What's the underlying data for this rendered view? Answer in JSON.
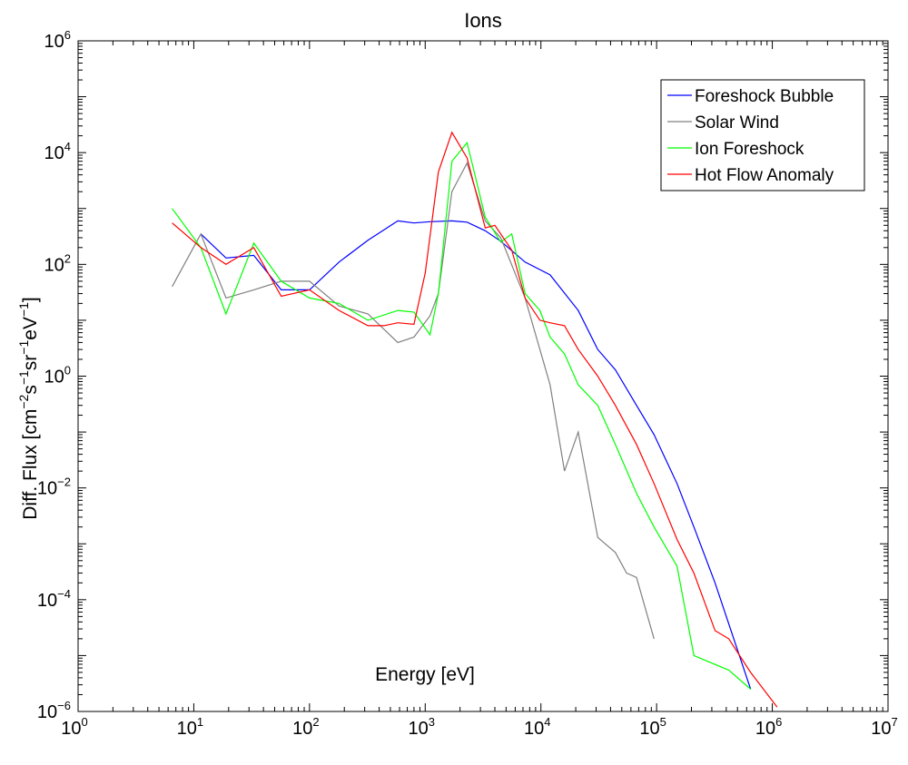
{
  "chart_data": {
    "type": "line",
    "title": "Ions",
    "xlabel": "Energy [eV]",
    "ylabel": {
      "parts": [
        {
          "text": "Diff. Flux [cm",
          "sup": false
        },
        {
          "text": "−2",
          "sup": true
        },
        {
          "text": "s",
          "sup": false
        },
        {
          "text": "−1",
          "sup": true
        },
        {
          "text": "sr",
          "sup": false
        },
        {
          "text": "−1",
          "sup": true
        },
        {
          "text": "eV",
          "sup": false
        },
        {
          "text": "−1",
          "sup": true
        },
        {
          "text": "]",
          "sup": false
        }
      ]
    },
    "xscale": "log",
    "yscale": "log",
    "xlim": [
      1,
      10000000
    ],
    "ylim": [
      1e-06,
      1000000
    ],
    "x_ticks": [
      {
        "base": "10",
        "exp": "0",
        "value": 1
      },
      {
        "base": "10",
        "exp": "1",
        "value": 10
      },
      {
        "base": "10",
        "exp": "2",
        "value": 100
      },
      {
        "base": "10",
        "exp": "3",
        "value": 1000
      },
      {
        "base": "10",
        "exp": "4",
        "value": 10000
      },
      {
        "base": "10",
        "exp": "5",
        "value": 100000
      },
      {
        "base": "10",
        "exp": "6",
        "value": 1000000
      },
      {
        "base": "10",
        "exp": "7",
        "value": 10000000
      }
    ],
    "y_ticks": [
      {
        "base": "10",
        "exp": "−6",
        "value": 1e-06
      },
      {
        "base": "10",
        "exp": "−4",
        "value": 0.0001
      },
      {
        "base": "10",
        "exp": "−2",
        "value": 0.01
      },
      {
        "base": "10",
        "exp": "0",
        "value": 1
      },
      {
        "base": "10",
        "exp": "2",
        "value": 100
      },
      {
        "base": "10",
        "exp": "4",
        "value": 10000
      },
      {
        "base": "10",
        "exp": "6",
        "value": 1000000
      }
    ],
    "grid": false,
    "legend_position": "top-right",
    "series": [
      {
        "name": "Foreshock Bubble",
        "color": "#0000ff",
        "points": [
          [
            11.5,
            350
          ],
          [
            19,
            130
          ],
          [
            33,
            145
          ],
          [
            57,
            35
          ],
          [
            100,
            35
          ],
          [
            180,
            110
          ],
          [
            320,
            270
          ],
          [
            580,
            600
          ],
          [
            800,
            550
          ],
          [
            1100,
            580
          ],
          [
            1700,
            600
          ],
          [
            2300,
            570
          ],
          [
            3300,
            400
          ],
          [
            4500,
            260
          ],
          [
            7300,
            110
          ],
          [
            12000,
            65
          ],
          [
            21000,
            15
          ],
          [
            31000,
            3
          ],
          [
            44000,
            1.3
          ],
          [
            67000,
            0.3
          ],
          [
            95000,
            0.09
          ],
          [
            150000,
            0.012
          ],
          [
            210000,
            0.002
          ],
          [
            320000,
            0.0002
          ],
          [
            650000,
            2.5e-06
          ]
        ]
      },
      {
        "name": "Solar Wind",
        "color": "#808080",
        "points": [
          [
            6.5,
            40
          ],
          [
            11.5,
            350
          ],
          [
            19,
            25
          ],
          [
            33,
            35
          ],
          [
            57,
            50
          ],
          [
            100,
            50
          ],
          [
            180,
            18
          ],
          [
            320,
            13
          ],
          [
            580,
            4
          ],
          [
            800,
            5
          ],
          [
            1100,
            12
          ],
          [
            1300,
            30
          ],
          [
            1700,
            2000
          ],
          [
            2300,
            6500
          ],
          [
            3300,
            600
          ],
          [
            4500,
            300
          ],
          [
            7300,
            25
          ],
          [
            9800,
            3
          ],
          [
            12000,
            0.7
          ],
          [
            16000,
            0.02
          ],
          [
            21000,
            0.1
          ],
          [
            31000,
            0.0013
          ],
          [
            44000,
            0.0007
          ],
          [
            55000,
            0.0003
          ],
          [
            67000,
            0.00025
          ],
          [
            95000,
            2e-05
          ]
        ]
      },
      {
        "name": "Ion Foreshock",
        "color": "#00ff00",
        "points": [
          [
            6.5,
            1000
          ],
          [
            11.5,
            200
          ],
          [
            19,
            13
          ],
          [
            33,
            240
          ],
          [
            57,
            50
          ],
          [
            100,
            25
          ],
          [
            180,
            20
          ],
          [
            320,
            10
          ],
          [
            580,
            15
          ],
          [
            800,
            14
          ],
          [
            1100,
            5.5
          ],
          [
            1300,
            30
          ],
          [
            1700,
            7000
          ],
          [
            2300,
            15000
          ],
          [
            3300,
            700
          ],
          [
            4500,
            250
          ],
          [
            5600,
            350
          ],
          [
            7300,
            30
          ],
          [
            9800,
            15
          ],
          [
            12000,
            5
          ],
          [
            16000,
            2.5
          ],
          [
            21000,
            0.7
          ],
          [
            31000,
            0.3
          ],
          [
            44000,
            0.06
          ],
          [
            67000,
            0.008
          ],
          [
            95000,
            0.002
          ],
          [
            150000,
            0.0004
          ],
          [
            210000,
            1e-05
          ],
          [
            420000,
            5.5e-06
          ],
          [
            650000,
            2.5e-06
          ]
        ]
      },
      {
        "name": "Hot Flow Anomaly",
        "color": "#ff0000",
        "points": [
          [
            6.5,
            550
          ],
          [
            11.5,
            200
          ],
          [
            19,
            100
          ],
          [
            33,
            200
          ],
          [
            57,
            27
          ],
          [
            100,
            35
          ],
          [
            180,
            15
          ],
          [
            320,
            8
          ],
          [
            440,
            8
          ],
          [
            580,
            9
          ],
          [
            800,
            8.5
          ],
          [
            1000,
            70
          ],
          [
            1300,
            4500
          ],
          [
            1700,
            23000
          ],
          [
            2300,
            8000
          ],
          [
            3300,
            450
          ],
          [
            4000,
            500
          ],
          [
            5600,
            180
          ],
          [
            7300,
            25
          ],
          [
            9800,
            10
          ],
          [
            12000,
            9
          ],
          [
            16000,
            8
          ],
          [
            21000,
            3
          ],
          [
            31000,
            1
          ],
          [
            44000,
            0.3
          ],
          [
            67000,
            0.06
          ],
          [
            95000,
            0.012
          ],
          [
            150000,
            0.0012
          ],
          [
            210000,
            0.0003
          ],
          [
            320000,
            2.8e-05
          ],
          [
            420000,
            2e-05
          ],
          [
            650000,
            5e-06
          ],
          [
            1100000,
            1.2e-06
          ]
        ]
      }
    ]
  }
}
